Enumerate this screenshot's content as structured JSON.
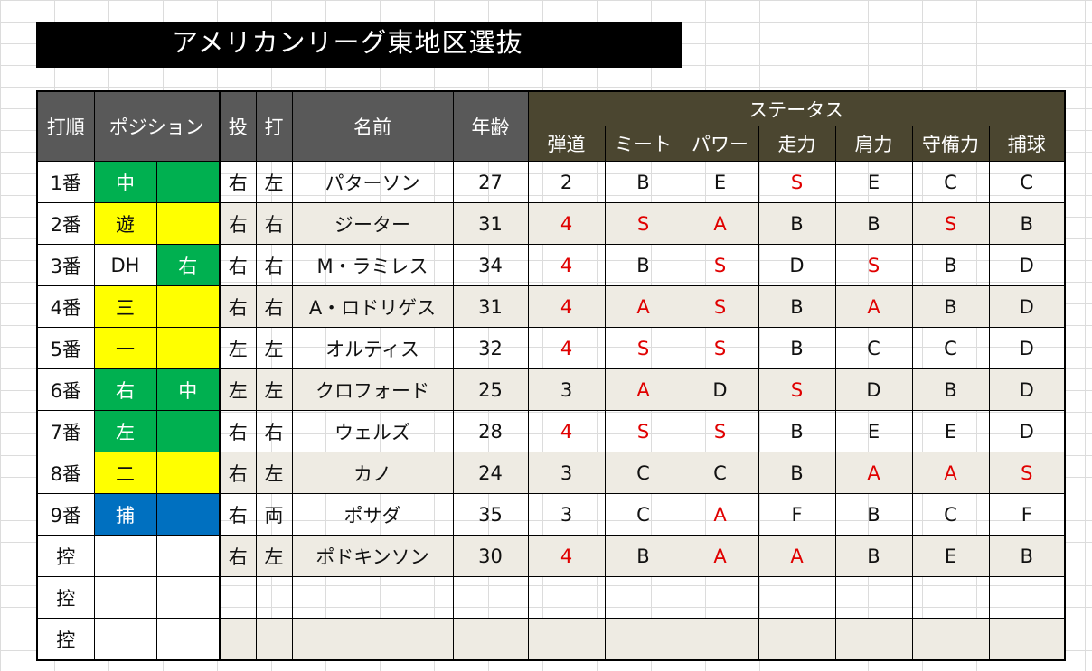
{
  "title": "アメリカンリーグ東地区選抜",
  "headers": {
    "order": "打順",
    "position": "ポジション",
    "throws": "投",
    "bats": "打",
    "name": "名前",
    "age": "年齢",
    "status": "ステータス",
    "stats": [
      "弾道",
      "ミート",
      "パワー",
      "走力",
      "肩力",
      "守備力",
      "捕球"
    ]
  },
  "colors": {
    "green": "#00b050",
    "yellow": "#ffff00",
    "blue": "#0070c0",
    "red_text": "#e00000",
    "header_gray": "#595959",
    "header_olive": "#4b4630",
    "alt_row": "#eeebe3"
  },
  "players": [
    {
      "order": "1番",
      "pos1": "中",
      "pos1_color": "green",
      "pos2": "",
      "pos2_color": "green",
      "throws": "右",
      "bats": "左",
      "name": "パターソン",
      "age": "27",
      "stats": [
        "2",
        "B",
        "E",
        "S",
        "E",
        "C",
        "C"
      ],
      "red": [
        false,
        false,
        false,
        true,
        false,
        false,
        false
      ]
    },
    {
      "order": "2番",
      "pos1": "遊",
      "pos1_color": "yellow",
      "pos2": "",
      "pos2_color": "yellow",
      "throws": "右",
      "bats": "右",
      "name": "ジーター",
      "age": "31",
      "stats": [
        "4",
        "S",
        "A",
        "B",
        "B",
        "S",
        "B"
      ],
      "red": [
        true,
        true,
        true,
        false,
        false,
        true,
        false
      ]
    },
    {
      "order": "3番",
      "pos1": "DH",
      "pos1_color": "plain",
      "pos2": "右",
      "pos2_color": "green",
      "throws": "右",
      "bats": "右",
      "name": "M・ラミレス",
      "age": "34",
      "stats": [
        "4",
        "B",
        "S",
        "D",
        "S",
        "B",
        "D"
      ],
      "red": [
        true,
        false,
        true,
        false,
        true,
        false,
        false
      ]
    },
    {
      "order": "4番",
      "pos1": "三",
      "pos1_color": "yellow",
      "pos2": "",
      "pos2_color": "yellow",
      "throws": "右",
      "bats": "右",
      "name": "A・ロドリゲス",
      "age": "31",
      "stats": [
        "4",
        "A",
        "S",
        "B",
        "A",
        "B",
        "D"
      ],
      "red": [
        true,
        true,
        true,
        false,
        true,
        false,
        false
      ]
    },
    {
      "order": "5番",
      "pos1": "一",
      "pos1_color": "yellow",
      "pos2": "",
      "pos2_color": "yellow",
      "throws": "左",
      "bats": "左",
      "name": "オルティス",
      "age": "32",
      "stats": [
        "4",
        "S",
        "S",
        "B",
        "C",
        "C",
        "D"
      ],
      "red": [
        true,
        true,
        true,
        false,
        false,
        false,
        false
      ]
    },
    {
      "order": "6番",
      "pos1": "右",
      "pos1_color": "green",
      "pos2": "中",
      "pos2_color": "green",
      "throws": "左",
      "bats": "左",
      "name": "クロフォード",
      "age": "25",
      "stats": [
        "3",
        "A",
        "D",
        "S",
        "D",
        "B",
        "D"
      ],
      "red": [
        false,
        true,
        false,
        true,
        false,
        false,
        false
      ]
    },
    {
      "order": "7番",
      "pos1": "左",
      "pos1_color": "green",
      "pos2": "",
      "pos2_color": "green",
      "throws": "右",
      "bats": "右",
      "name": "ウェルズ",
      "age": "28",
      "stats": [
        "4",
        "S",
        "S",
        "B",
        "E",
        "E",
        "D"
      ],
      "red": [
        true,
        true,
        true,
        false,
        false,
        false,
        false
      ]
    },
    {
      "order": "8番",
      "pos1": "二",
      "pos1_color": "yellow",
      "pos2": "",
      "pos2_color": "yellow",
      "throws": "右",
      "bats": "左",
      "name": "カノ",
      "age": "24",
      "stats": [
        "3",
        "C",
        "C",
        "B",
        "A",
        "A",
        "S"
      ],
      "red": [
        false,
        false,
        false,
        false,
        true,
        true,
        true
      ]
    },
    {
      "order": "9番",
      "pos1": "捕",
      "pos1_color": "blue",
      "pos2": "",
      "pos2_color": "blue",
      "throws": "右",
      "bats": "両",
      "name": "ポサダ",
      "age": "35",
      "stats": [
        "3",
        "C",
        "A",
        "F",
        "B",
        "C",
        "F"
      ],
      "red": [
        false,
        false,
        true,
        false,
        false,
        false,
        false
      ]
    },
    {
      "order": "控",
      "pos1": "",
      "pos1_color": "plain",
      "pos2": "",
      "pos2_color": "plain",
      "throws": "右",
      "bats": "左",
      "name": "ポドキンソン",
      "age": "30",
      "stats": [
        "4",
        "B",
        "A",
        "A",
        "B",
        "E",
        "B"
      ],
      "red": [
        true,
        false,
        true,
        true,
        false,
        false,
        false
      ]
    },
    {
      "order": "控",
      "pos1": "",
      "pos1_color": "plain",
      "pos2": "",
      "pos2_color": "plain",
      "throws": "",
      "bats": "",
      "name": "",
      "age": "",
      "stats": [
        "",
        "",
        "",
        "",
        "",
        "",
        ""
      ],
      "red": [
        false,
        false,
        false,
        false,
        false,
        false,
        false
      ]
    },
    {
      "order": "控",
      "pos1": "",
      "pos1_color": "plain",
      "pos2": "",
      "pos2_color": "plain",
      "throws": "",
      "bats": "",
      "name": "",
      "age": "",
      "stats": [
        "",
        "",
        "",
        "",
        "",
        "",
        ""
      ],
      "red": [
        false,
        false,
        false,
        false,
        false,
        false,
        false
      ]
    }
  ]
}
